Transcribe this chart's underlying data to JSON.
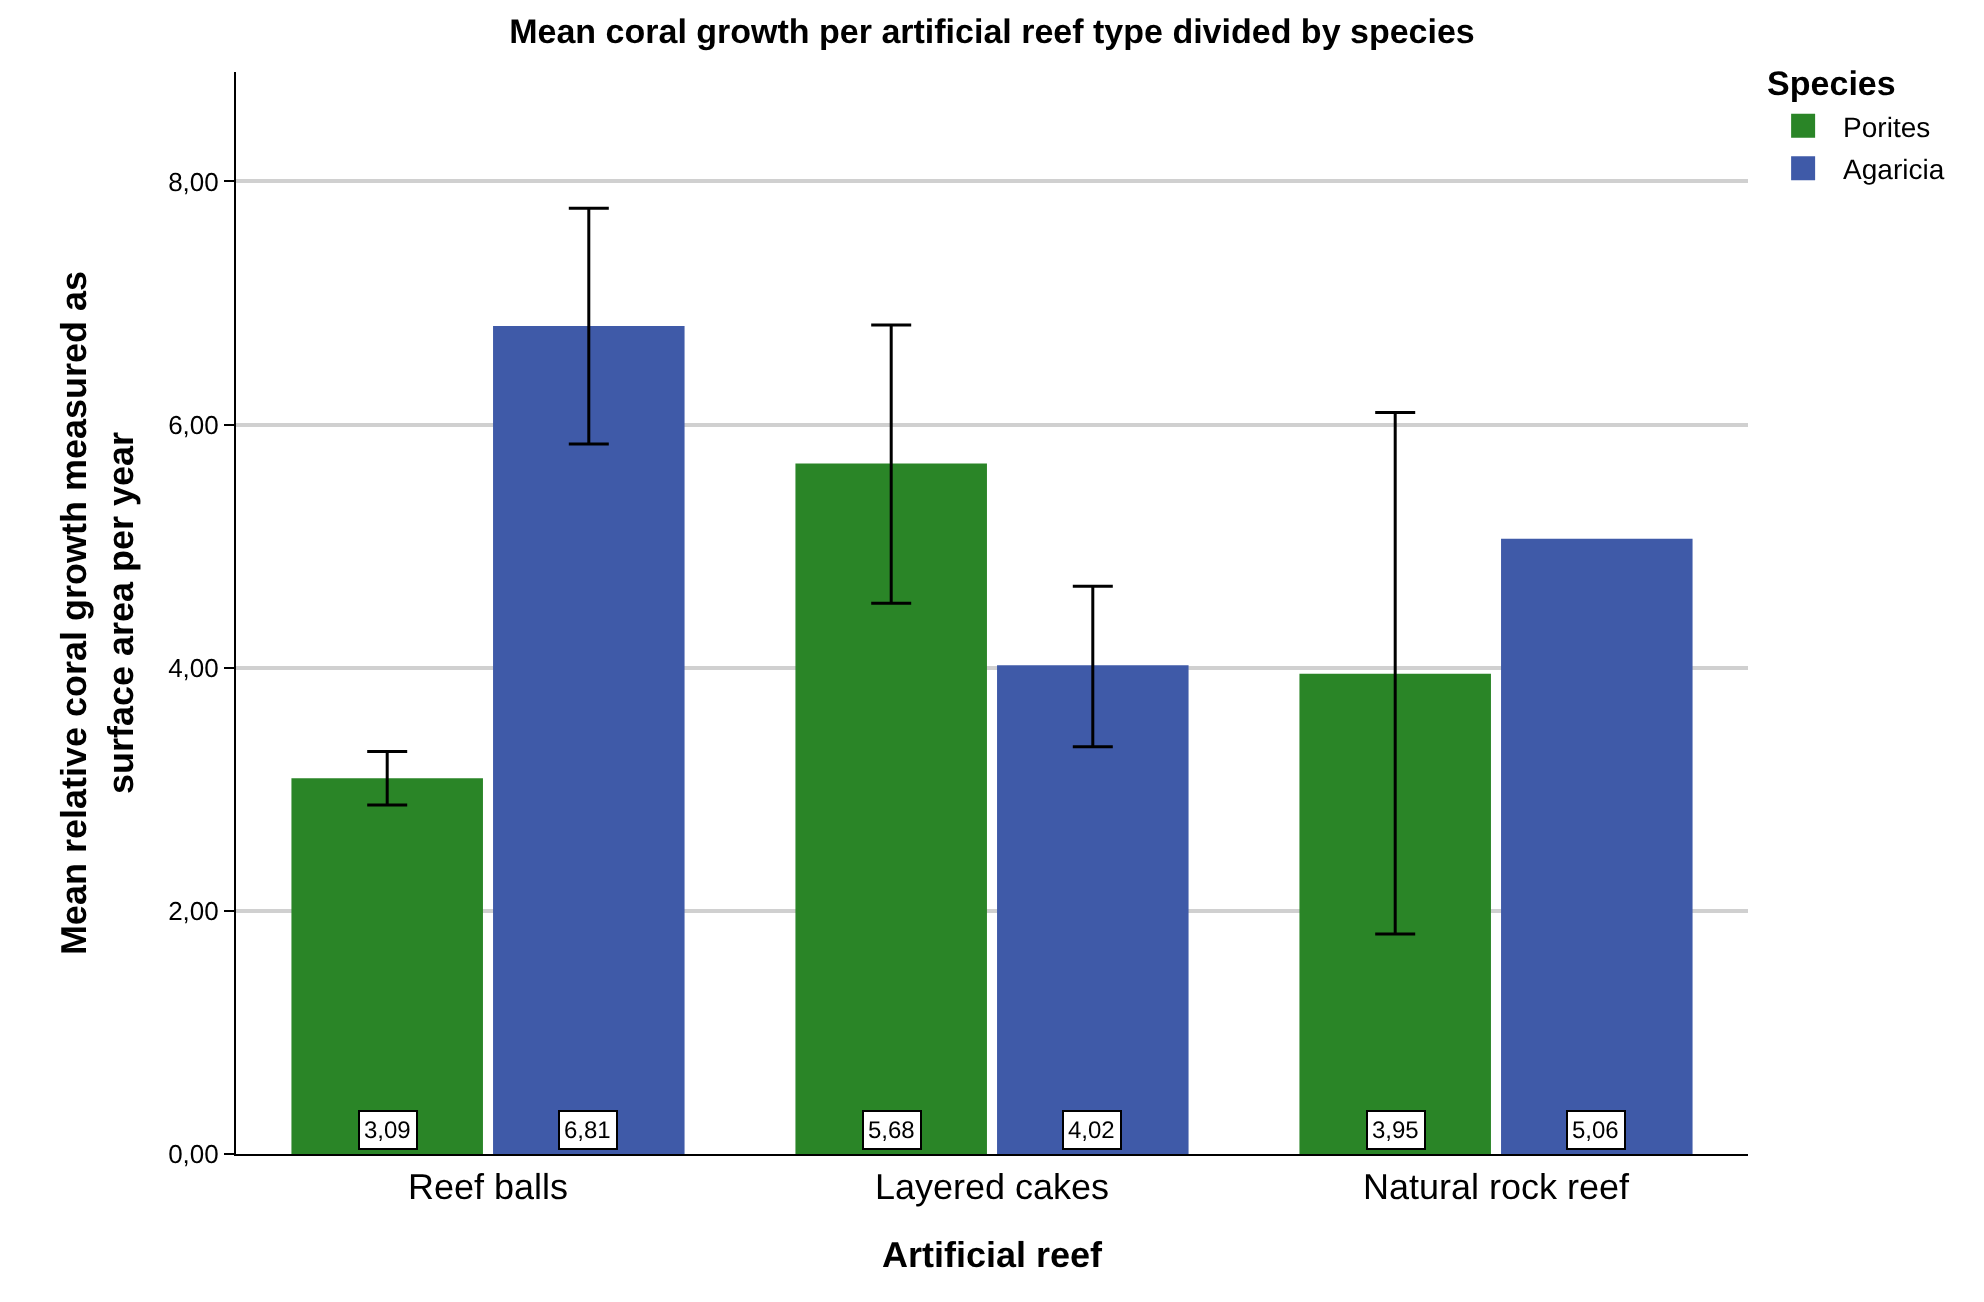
{
  "chart_data": {
    "type": "bar",
    "title": "Mean coral growth per artificial reef type divided by species",
    "xlabel": "Artificial reef",
    "ylabel": "Mean relative coral growth measured as surface area per year",
    "legend_title": "Species",
    "categories": [
      "Reef balls",
      "Layered cakes",
      "Natural rock reef"
    ],
    "series": [
      {
        "name": "Porites",
        "color": "#2a8527",
        "values": [
          3.09,
          5.68,
          3.95
        ],
        "errors": [
          [
            2.87,
            3.31
          ],
          [
            4.53,
            6.82
          ],
          [
            1.81,
            6.1
          ]
        ],
        "value_labels": [
          "3,09",
          "5,68",
          "3,95"
        ]
      },
      {
        "name": "Agaricia",
        "color": "#3f5aa8",
        "values": [
          6.81,
          4.02,
          5.06
        ],
        "errors": [
          [
            5.84,
            7.78
          ],
          [
            3.35,
            4.67
          ],
          null
        ],
        "value_labels": [
          "6,81",
          "4,02",
          "5,06"
        ]
      }
    ],
    "ylim": [
      0,
      8.9
    ],
    "yticks": [
      {
        "value": 0,
        "label": "0,00"
      },
      {
        "value": 2,
        "label": "2,00"
      },
      {
        "value": 4,
        "label": "4,00"
      },
      {
        "value": 6,
        "label": "6,00"
      },
      {
        "value": 8,
        "label": "8,00"
      }
    ],
    "grid": "y",
    "legend": "top right"
  }
}
